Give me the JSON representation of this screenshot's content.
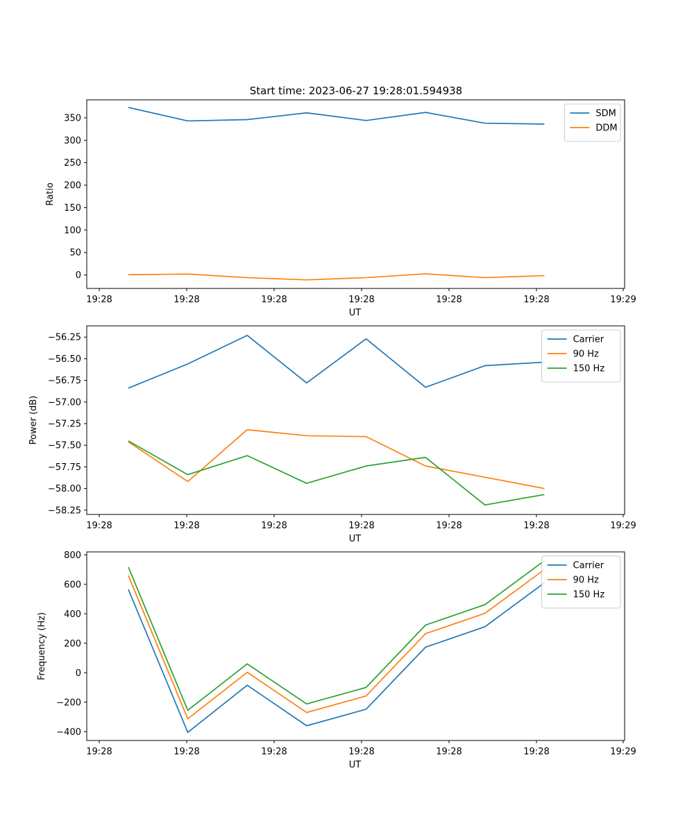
{
  "figure": {
    "title": "Start time: 2023-06-27 19:28:01.594938"
  },
  "chart_data": [
    {
      "type": "line",
      "title": "Start time: 2023-06-27 19:28:01.594938",
      "xlabel": "UT",
      "ylabel": "Ratio",
      "x_tick_labels": [
        "19:28",
        "19:28",
        "19:28",
        "19:28",
        "19:28",
        "19:28",
        "19:29"
      ],
      "y_ticks": [
        0,
        50,
        100,
        150,
        200,
        250,
        300,
        350
      ],
      "y_tick_labels": [
        "0",
        "50",
        "100",
        "150",
        "200",
        "250",
        "300",
        "350"
      ],
      "ylim": [
        -30,
        390
      ],
      "xlim": [
        -0.7,
        8.35
      ],
      "grid": false,
      "legend": "top-right",
      "x": [
        0,
        1,
        2,
        3,
        4,
        5,
        6,
        7
      ],
      "series": [
        {
          "name": "SDM",
          "color": "#1f77b4",
          "values": [
            373,
            343,
            346,
            361,
            344,
            362,
            338,
            336
          ]
        },
        {
          "name": "DDM",
          "color": "#ff7f0e",
          "values": [
            0.5,
            2,
            -6,
            -11,
            -6,
            2.5,
            -6,
            -1.5
          ]
        }
      ]
    },
    {
      "type": "line",
      "title": "",
      "xlabel": "UT",
      "ylabel": "Power (dB)",
      "x_tick_labels": [
        "19:28",
        "19:28",
        "19:28",
        "19:28",
        "19:28",
        "19:28",
        "19:29"
      ],
      "y_ticks": [
        -56.25,
        -56.5,
        -56.75,
        -57.0,
        -57.25,
        -57.5,
        -57.75,
        -58.0,
        -58.25
      ],
      "y_tick_labels": [
        "−56.25",
        "−56.50",
        "−56.75",
        "−57.00",
        "−57.25",
        "−57.50",
        "−57.75",
        "−58.00",
        "−58.25"
      ],
      "ylim": [
        -58.3,
        -56.12
      ],
      "xlim": [
        -0.7,
        8.35
      ],
      "grid": false,
      "legend": "top-right",
      "x": [
        0,
        1,
        2,
        3,
        4,
        5,
        6,
        7
      ],
      "series": [
        {
          "name": "Carrier",
          "color": "#1f77b4",
          "values": [
            -56.84,
            -56.56,
            -56.23,
            -56.78,
            -56.27,
            -56.83,
            -56.58,
            -56.54
          ]
        },
        {
          "name": "90 Hz",
          "color": "#ff7f0e",
          "values": [
            -57.46,
            -57.92,
            -57.32,
            -57.39,
            -57.4,
            -57.74,
            -57.87,
            -58.0
          ]
        },
        {
          "name": "150 Hz",
          "color": "#2ca02c",
          "values": [
            -57.45,
            -57.84,
            -57.62,
            -57.94,
            -57.74,
            -57.64,
            -58.19,
            -58.07
          ]
        }
      ]
    },
    {
      "type": "line",
      "title": "",
      "xlabel": "UT",
      "ylabel": "Frequency (Hz)",
      "x_tick_labels": [
        "19:28",
        "19:28",
        "19:28",
        "19:28",
        "19:28",
        "19:28",
        "19:29"
      ],
      "y_ticks": [
        -400,
        -200,
        0,
        200,
        400,
        600,
        800
      ],
      "y_tick_labels": [
        "−400",
        "−200",
        "0",
        "200",
        "400",
        "600",
        "800"
      ],
      "ylim": [
        -460,
        820
      ],
      "xlim": [
        -0.7,
        8.35
      ],
      "grid": false,
      "legend": "top-right",
      "x": [
        0,
        1,
        2,
        3,
        4,
        5,
        6,
        7
      ],
      "series": [
        {
          "name": "Carrier",
          "color": "#1f77b4",
          "values": [
            565,
            -405,
            -85,
            -360,
            -248,
            173,
            312,
            610
          ]
        },
        {
          "name": "90 Hz",
          "color": "#ff7f0e",
          "values": [
            660,
            -313,
            3,
            -270,
            -158,
            265,
            403,
            700
          ]
        },
        {
          "name": "150 Hz",
          "color": "#2ca02c",
          "values": [
            717,
            -255,
            60,
            -212,
            -100,
            323,
            462,
            760
          ]
        }
      ]
    }
  ]
}
